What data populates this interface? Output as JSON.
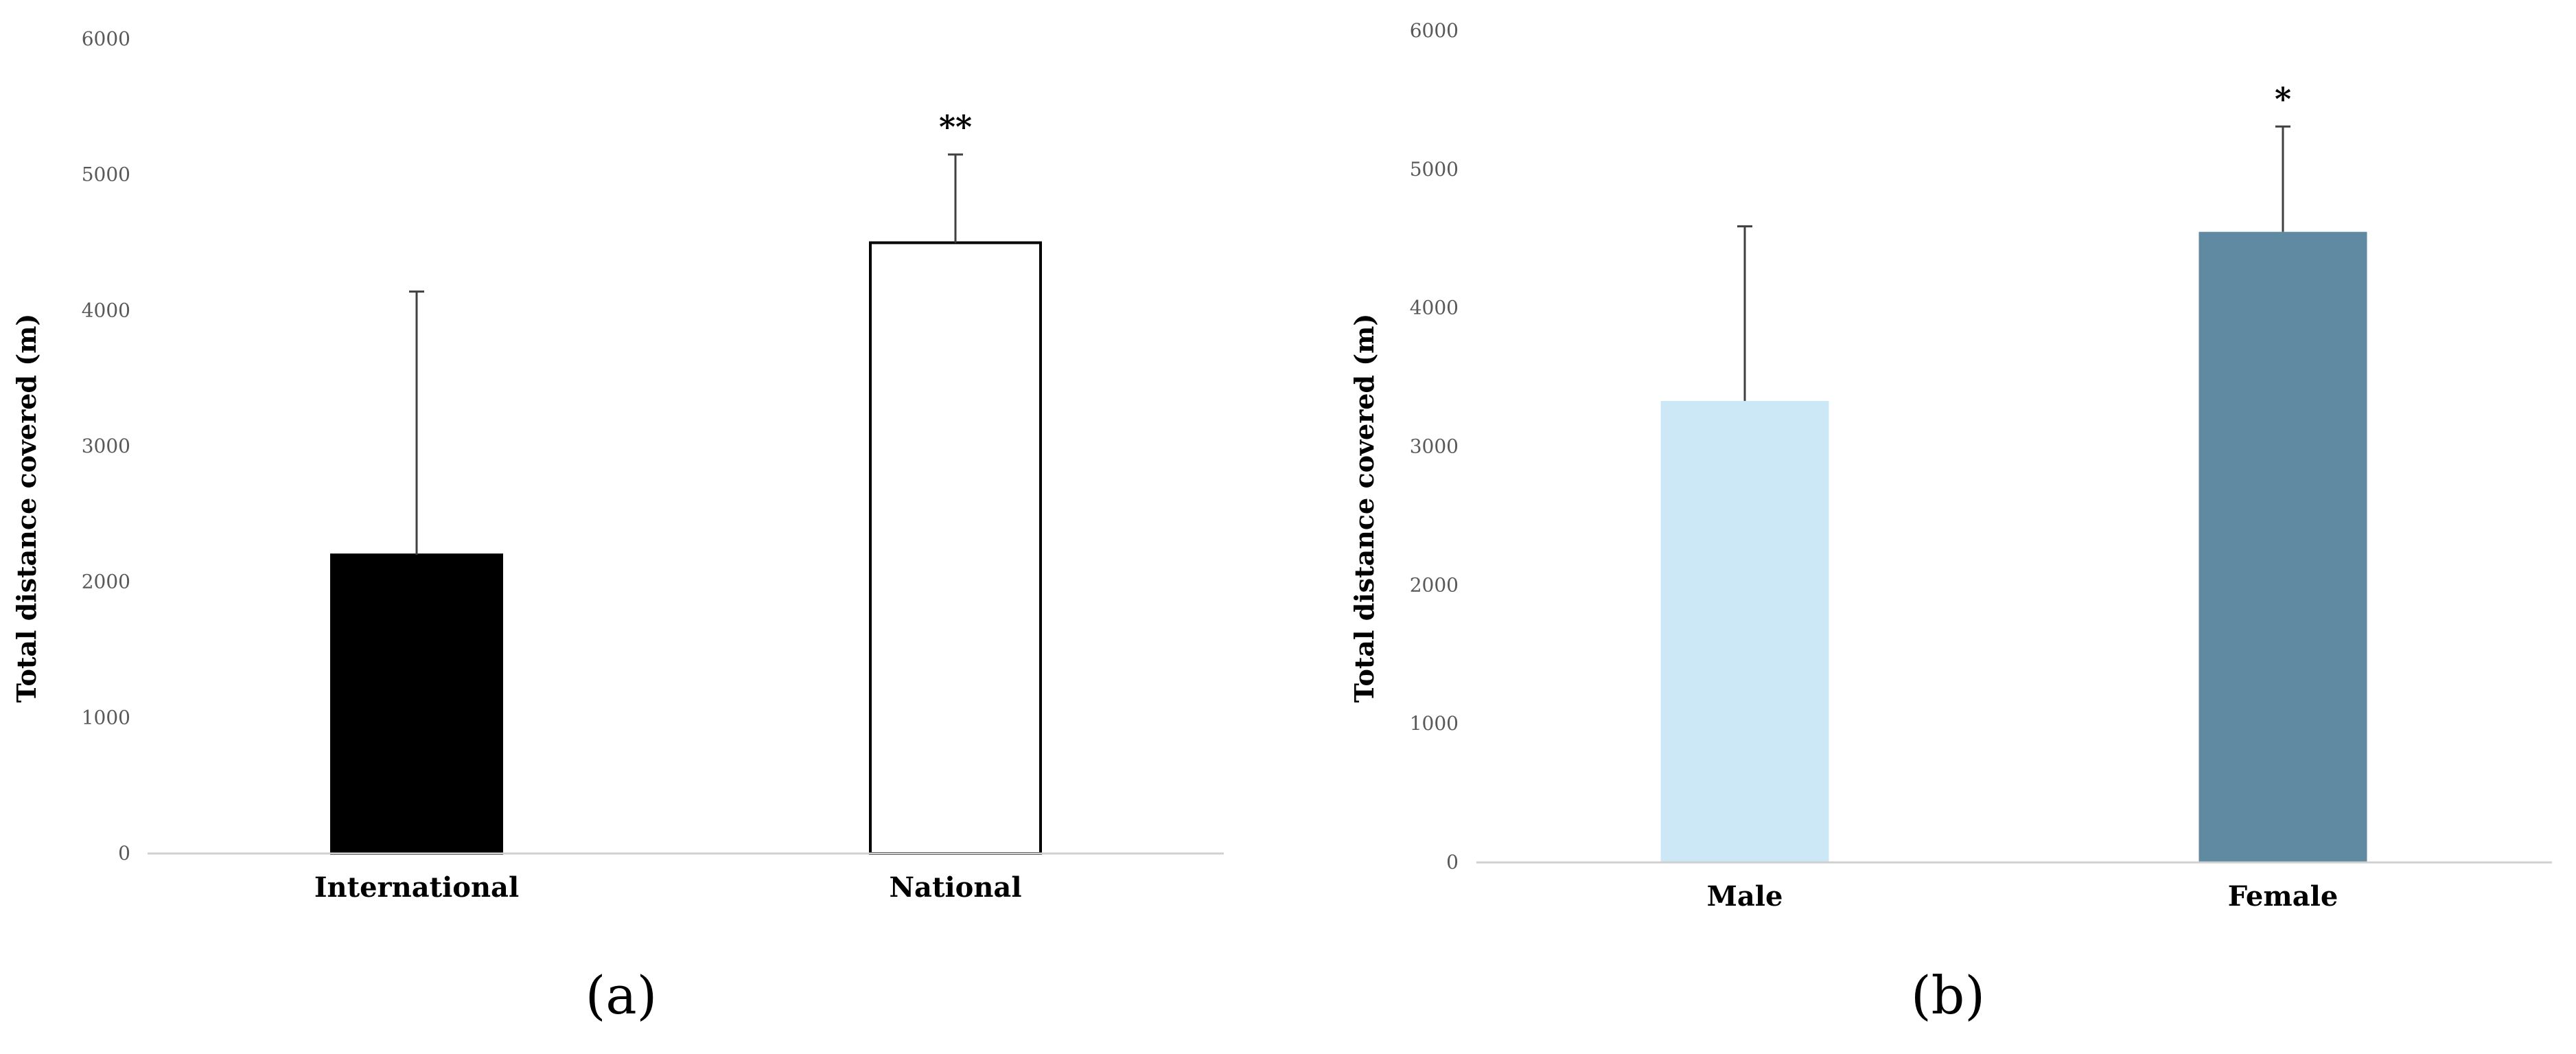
{
  "chart_data": [
    {
      "type": "bar",
      "panel_label": "(a)",
      "categories": [
        "International",
        "National"
      ],
      "values": [
        2200,
        4500
      ],
      "error_upper": [
        4140,
        5150
      ],
      "significance": [
        "",
        "**"
      ],
      "bar_colors": [
        "#000000",
        "#ffffff"
      ],
      "bar_stroke": "#000000",
      "ylabel": "Total distance covered (m)",
      "ylim": [
        0,
        6000
      ],
      "yticks": [
        "0",
        "1000",
        "2000",
        "3000",
        "4000",
        "5000",
        "6000"
      ],
      "grid": false
    },
    {
      "type": "bar",
      "panel_label": "(b)",
      "categories": [
        "Male",
        "Female"
      ],
      "values": [
        3330,
        4550
      ],
      "error_upper": [
        4590,
        5310
      ],
      "significance": [
        "",
        "*"
      ],
      "bar_colors": [
        "#cce8f7",
        "#5f8aa2"
      ],
      "bar_stroke": "",
      "ylabel": "Total distance covered (m)",
      "ylim": [
        0,
        6000
      ],
      "yticks": [
        "0",
        "1000",
        "2000",
        "3000",
        "4000",
        "5000",
        "6000"
      ],
      "grid": false
    }
  ]
}
